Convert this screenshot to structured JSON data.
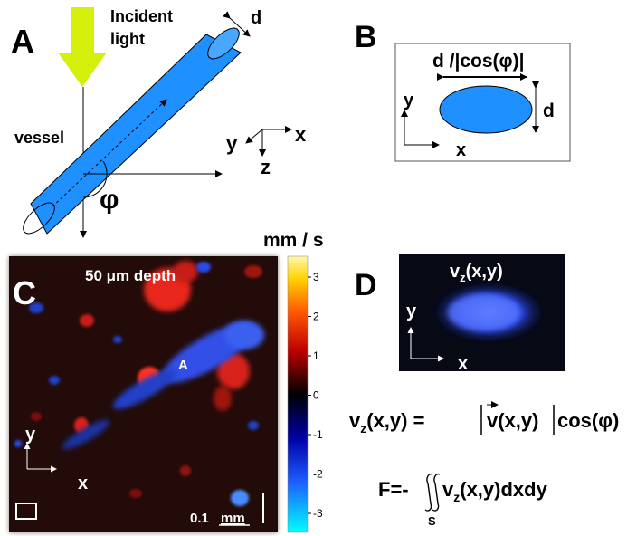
{
  "panel_a": {
    "letter": "A",
    "incident_label_1": "Incident",
    "incident_label_2": "light",
    "diameter": "d",
    "vessel": "vessel",
    "angle": "φ",
    "axis_x": "x",
    "axis_y": "y",
    "axis_z": "z"
  },
  "panel_b": {
    "letter": "B",
    "width_label": "d /|cos(φ)|",
    "height_label": "d",
    "axis_y": "y",
    "axis_x": "x"
  },
  "panel_c": {
    "letter": "C",
    "depth_label": "50 μm depth",
    "marker": "A",
    "axis_y": "y",
    "axis_x": "x",
    "scale_value": "0.1",
    "scale_unit": "mm",
    "colorbar_unit": "mm / s",
    "colorbar_ticks": [
      "3",
      "2",
      "1",
      "0",
      "-1",
      "-2",
      "-3"
    ]
  },
  "panel_d": {
    "letter": "D",
    "image_label": "v",
    "image_label_sub": "z",
    "image_label_args": "(x,y)",
    "axis_y": "y",
    "axis_x": "x",
    "eq1_lhs": "v",
    "eq1_lhs_sub": "z",
    "eq1_lhs_args": "(x,y) =",
    "eq1_v": "v",
    "eq1_v_args": "(x,y)",
    "eq1_cos": "cos(φ)",
    "eq2_prefix": "F=-",
    "eq2_integrand": "v",
    "eq2_integrand_sub": "z",
    "eq2_rest": "(x,y)dxdy",
    "eq2_domain": "S"
  },
  "colors": {
    "vessel_blue": "#1e90ff",
    "arrow_yellow": "#d4f00a",
    "map_background": "#1a0a06",
    "flow_red": "#e8281e",
    "flow_blue": "#3050e8"
  }
}
